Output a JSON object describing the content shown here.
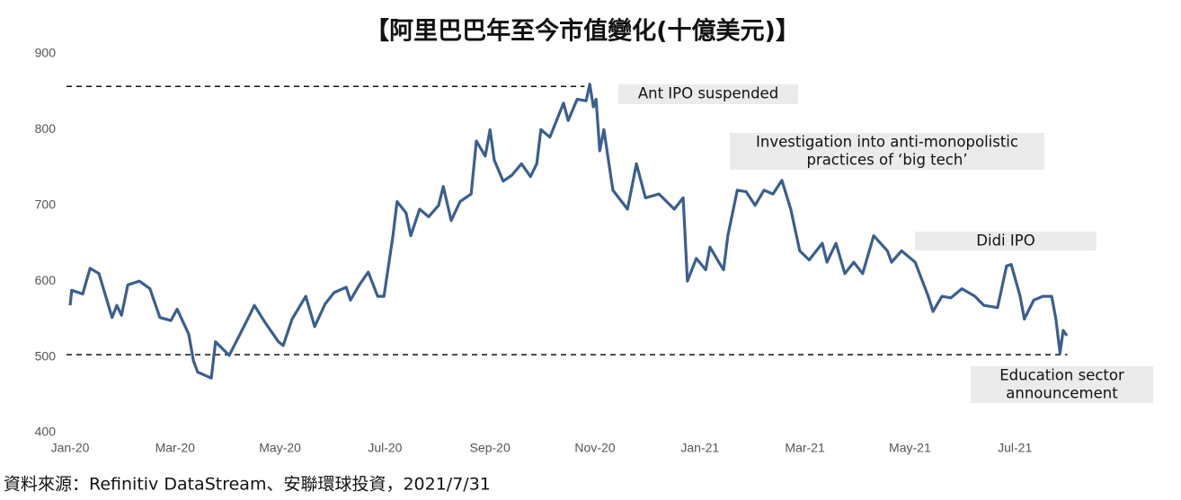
{
  "chart_data": {
    "type": "line",
    "title": "【阿里巴巴年至今市值變化(十億美元)】",
    "source": "資料來源：Refinitiv DataStream、安聯環球投資，2021/7/31",
    "xlim": [
      0,
      19.5
    ],
    "xticks": [
      {
        "value": 0,
        "label": "Jan-20"
      },
      {
        "value": 2,
        "label": "Mar-20"
      },
      {
        "value": 4,
        "label": "May-20"
      },
      {
        "value": 6,
        "label": "Jul-20"
      },
      {
        "value": 8,
        "label": "Sep-20"
      },
      {
        "value": 10,
        "label": "Nov-20"
      },
      {
        "value": 12,
        "label": "Jan-21"
      },
      {
        "value": 14,
        "label": "Mar-21"
      },
      {
        "value": 16,
        "label": "May-21"
      },
      {
        "value": 18,
        "label": "Jul-21"
      }
    ],
    "ylim": [
      400,
      900
    ],
    "yticks": [
      400,
      500,
      600,
      700,
      800,
      900
    ],
    "grid": false,
    "series": [
      {
        "color": "#3a5f8f",
        "x": [
          0,
          0.03,
          0.24,
          0.38,
          0.55,
          0.8,
          0.89,
          0.98,
          1.1,
          1.32,
          1.52,
          1.71,
          1.92,
          2.04,
          2.26,
          2.35,
          2.43,
          2.69,
          2.77,
          3.03,
          3.2,
          3.42,
          3.51,
          3.72,
          3.97,
          4.06,
          4.23,
          4.49,
          4.66,
          4.86,
          5.03,
          5.26,
          5.34,
          5.51,
          5.68,
          5.86,
          5.98,
          6.15,
          6.23,
          6.4,
          6.49,
          6.66,
          6.83,
          7.02,
          7.11,
          7.26,
          7.43,
          7.64,
          7.74,
          7.91,
          8,
          8.08,
          8.25,
          8.42,
          8.6,
          8.77,
          8.89,
          8.97,
          9.14,
          9.4,
          9.49,
          9.66,
          9.83,
          9.9,
          9.97,
          10.02,
          10.09,
          10.17,
          10.34,
          10.62,
          10.79,
          10.96,
          11.22,
          11.51,
          11.68,
          11.76,
          11.93,
          12.11,
          12.19,
          12.36,
          12.45,
          12.53,
          12.71,
          12.88,
          13.05,
          13.22,
          13.39,
          13.56,
          13.73,
          13.9,
          14.08,
          14.33,
          14.42,
          14.59,
          14.76,
          14.93,
          15.1,
          15.31,
          15.57,
          15.65,
          15.84,
          16.1,
          16.35,
          16.44,
          16.61,
          16.78,
          16.99,
          17.24,
          17.41,
          17.67,
          17.84,
          17.93,
          18.1,
          18.18,
          18.36,
          18.53,
          18.7,
          18.78,
          18.86,
          18.92,
          18.99
        ],
        "values": [
          568,
          588,
          583,
          617,
          610,
          552,
          568,
          555,
          595,
          600,
          590,
          552,
          548,
          563,
          530,
          495,
          480,
          472,
          520,
          502,
          525,
          555,
          568,
          545,
          520,
          515,
          550,
          580,
          540,
          570,
          585,
          592,
          575,
          595,
          612,
          580,
          580,
          660,
          705,
          690,
          660,
          695,
          685,
          700,
          725,
          680,
          705,
          715,
          785,
          765,
          800,
          760,
          732,
          740,
          755,
          738,
          755,
          800,
          790,
          835,
          812,
          840,
          838,
          860,
          830,
          840,
          772,
          800,
          720,
          695,
          755,
          710,
          715,
          695,
          710,
          600,
          630,
          615,
          645,
          625,
          615,
          660,
          720,
          718,
          700,
          720,
          715,
          733,
          695,
          640,
          628,
          650,
          625,
          650,
          610,
          625,
          610,
          660,
          640,
          625,
          640,
          625,
          580,
          560,
          580,
          578,
          590,
          580,
          568,
          565,
          620,
          622,
          580,
          550,
          575,
          580,
          580,
          550,
          505,
          535,
          528
        ]
      }
    ],
    "reference_lines": [
      {
        "y": 857,
        "x_end": 9.8
      },
      {
        "y": 503,
        "x_end": 19
      }
    ],
    "annotations": [
      {
        "lines": [
          "Ant IPO suspended"
        ]
      },
      {
        "lines": [
          "Investigation into anti-monopolistic",
          "practices of ‘big tech’"
        ]
      },
      {
        "lines": [
          "Didi IPO"
        ]
      },
      {
        "lines": [
          "Education sector",
          "announcement"
        ]
      }
    ]
  }
}
